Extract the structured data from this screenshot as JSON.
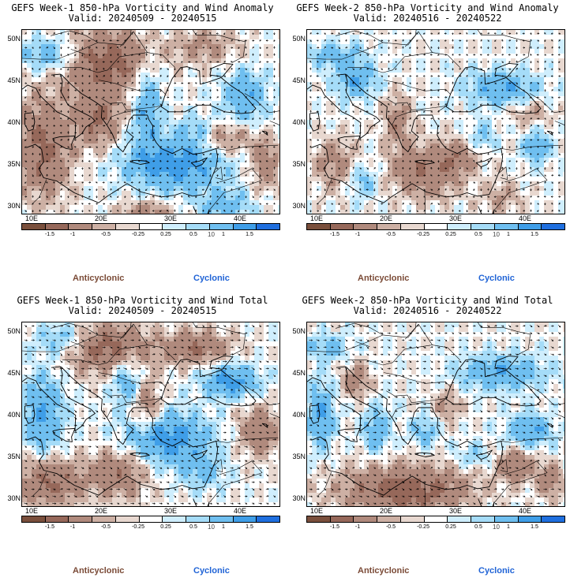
{
  "panels": [
    {
      "title": "GEFS Week-1 850-hPa Vorticity and Wind Anomaly",
      "valid": "Valid: 20240509 - 20240515"
    },
    {
      "title": "GEFS Week-2 850-hPa Vorticity and Wind Anomaly",
      "valid": "Valid: 20240516 - 20240522"
    },
    {
      "title": "GEFS Week-1 850-hPa Vorticity and Wind Total",
      "valid": "Valid: 20240509 - 20240515"
    },
    {
      "title": "GEFS Week-2 850-hPa Vorticity and Wind Total",
      "valid": "Valid: 20240516 - 20240522"
    }
  ],
  "lat_labels": [
    "50N",
    "45N",
    "40N",
    "35N",
    "30N"
  ],
  "lon_labels": [
    "10E",
    "20E",
    "30E",
    "40E"
  ],
  "colorbar_ticks": [
    "-1.5",
    "-1",
    "-0.5",
    "-0.25",
    "0.25",
    "0.5",
    "1",
    "1.5"
  ],
  "colorbar_scale": "10",
  "colorbar_colors": [
    "#7a4f3c",
    "#96685a",
    "#b08a7d",
    "#cdb0a4",
    "#e8d8d0",
    "#ffffff",
    "#cfeefd",
    "#a5dcf8",
    "#6fbff0",
    "#3f9ee8",
    "#1f6fdf"
  ],
  "legend": {
    "anticyclonic": "Anticyclonic",
    "cyclonic": "Cyclonic"
  },
  "colors": {
    "anticyclonic": "#7a4a36",
    "cyclonic": "#1f63d6"
  }
}
